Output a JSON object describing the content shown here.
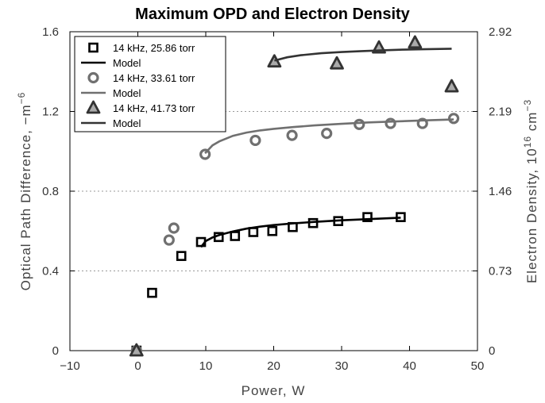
{
  "chart_data": {
    "type": "scatter",
    "title": "Maximum OPD and Electron Density",
    "xlabel": "Power, W",
    "ylabel": "Optical Path Difference, −m",
    "ylabel_sup": "−6",
    "y2label": "Electron Density, 10",
    "y2label_sup1": "16",
    "y2label_mid": " cm",
    "y2label_sup2": "−3",
    "xlim": [
      -10,
      50
    ],
    "ylim": [
      0,
      1.6
    ],
    "xticks": [
      "−10",
      "0",
      "10",
      "20",
      "30",
      "40",
      "50"
    ],
    "yticks": [
      "0",
      "0.4",
      "0.8",
      "1.2",
      "1.6"
    ],
    "y2ticks": [
      "0",
      "0.73",
      "1.46",
      "2.19",
      "2.92"
    ],
    "grid": "horizontal dotted",
    "legend_position": "top-left",
    "series": [
      {
        "name": "14 kHz, 25.86 torr",
        "marker": "square",
        "color": "#000000",
        "x": [
          -0.2,
          2.1,
          6.4,
          9.3,
          11.9,
          14.3,
          17.0,
          19.8,
          22.8,
          25.8,
          29.5,
          33.8,
          38.7
        ],
        "y": [
          0.0,
          0.29,
          0.475,
          0.545,
          0.57,
          0.575,
          0.595,
          0.6,
          0.62,
          0.64,
          0.65,
          0.67,
          0.67
        ]
      },
      {
        "name": "Model",
        "line": true,
        "color": "#000000",
        "x": [
          9.3,
          10,
          11,
          12,
          14,
          16,
          18,
          20,
          23,
          26,
          30,
          34,
          38,
          38.7
        ],
        "y": [
          0.52,
          0.55,
          0.568,
          0.58,
          0.598,
          0.612,
          0.622,
          0.63,
          0.639,
          0.646,
          0.654,
          0.66,
          0.666,
          0.667
        ]
      },
      {
        "name": "14 kHz, 33.61 torr",
        "marker": "circle",
        "color": "#707070",
        "x": [
          -0.2,
          4.6,
          5.3,
          9.9,
          17.3,
          22.7,
          27.8,
          32.6,
          37.2,
          41.9,
          46.5
        ],
        "y": [
          0.0,
          0.555,
          0.615,
          0.985,
          1.055,
          1.08,
          1.09,
          1.135,
          1.14,
          1.14,
          1.165
        ]
      },
      {
        "name": "Model",
        "line": true,
        "color": "#707070",
        "x": [
          9.9,
          11,
          12,
          14,
          16,
          18,
          20,
          23,
          26,
          30,
          34,
          38,
          42,
          46.5
        ],
        "y": [
          0.99,
          1.03,
          1.05,
          1.078,
          1.094,
          1.105,
          1.113,
          1.122,
          1.13,
          1.138,
          1.145,
          1.15,
          1.155,
          1.16
        ]
      },
      {
        "name": "14 kHz, 41.73 torr",
        "marker": "triangle",
        "color": "#333333",
        "x": [
          -0.2,
          20.1,
          29.3,
          35.5,
          40.8,
          46.2
        ],
        "y": [
          0.0,
          1.45,
          1.44,
          1.52,
          1.545,
          1.325
        ]
      },
      {
        "name": "Model",
        "line": true,
        "color": "#333333",
        "x": [
          20.1,
          22,
          24,
          27,
          30,
          33,
          36,
          39,
          42,
          46.2
        ],
        "y": [
          1.455,
          1.472,
          1.482,
          1.492,
          1.498,
          1.503,
          1.507,
          1.51,
          1.512,
          1.515
        ]
      }
    ]
  }
}
